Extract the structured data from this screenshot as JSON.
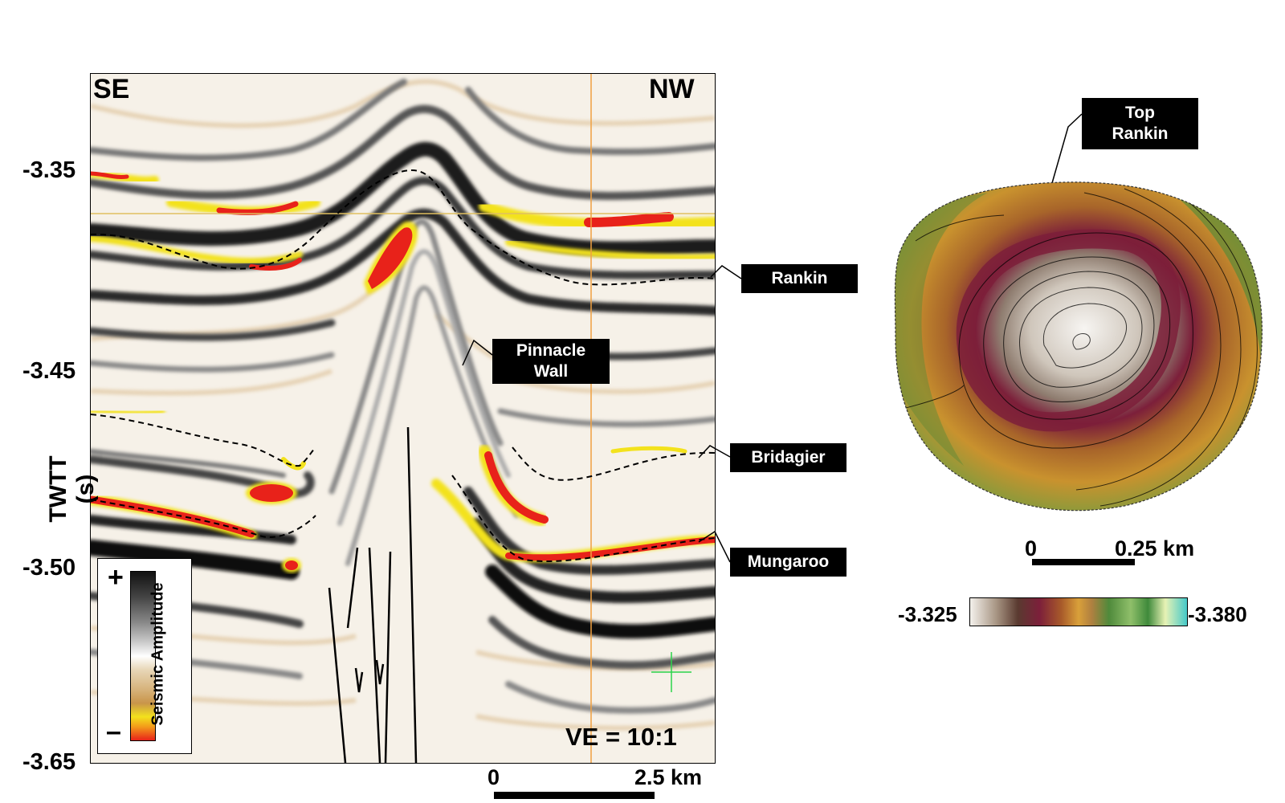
{
  "section": {
    "left_label": "SE",
    "right_label": "NW",
    "ve_label": "VE = 10:1",
    "y_axis_label": "TWTT (s)",
    "y_ticks": [
      "-3.35",
      "-3.45",
      "-3.50",
      "-3.65"
    ],
    "scale_start": "0",
    "scale_end": "2.5 km",
    "horizon_labels": {
      "rankin": "Rankin",
      "pinnacle_line1": "Pinnacle",
      "pinnacle_line2": "Wall",
      "bridagier": "Bridagier",
      "mungaroo": "Mungaroo"
    },
    "legend": {
      "title": "Seismic  Amplitude",
      "plus": "+",
      "minus": "–"
    }
  },
  "map": {
    "callout_line1": "Top",
    "callout_line2": "Rankin",
    "scale_start": "0",
    "scale_end": "0.25 km",
    "colorbar_min": "-3.325",
    "colorbar_max": "-3.380"
  },
  "colors": {
    "amplitude_positive": "#141414",
    "amplitude_negative": "#e8221a",
    "yellow": "#f3e21c",
    "tan": "#d9b98a",
    "map_center": "#f4f1ec",
    "map_maroon": "#7c1f3a",
    "map_orange": "#c9872c",
    "map_green": "#3f8a3b",
    "map_cyan": "#45c9c9"
  }
}
